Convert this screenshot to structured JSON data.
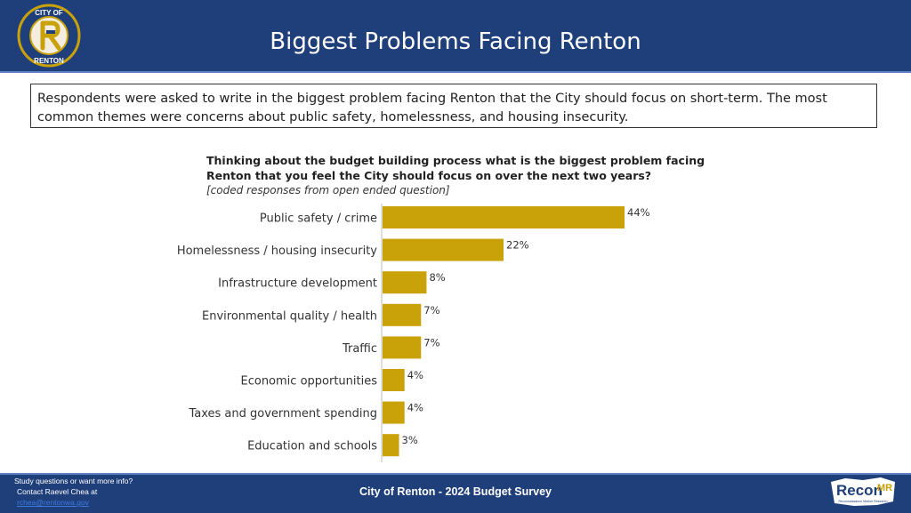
{
  "header": {
    "title": "Biggest Problems Facing Renton",
    "logo_text_top": "CITY OF",
    "logo_text_bottom": "RENTON"
  },
  "intro": "Respondents were asked to write in the biggest problem facing Renton that the City should focus on short-term. The most common themes were concerns about public safety, homelessness, and housing insecurity.",
  "question": {
    "title": "Thinking about the budget building process what is the biggest problem facing Renton that you feel the City should focus on over the next two years?",
    "subtitle": "[coded responses from open ended question]"
  },
  "chart_data": {
    "type": "bar",
    "orientation": "horizontal",
    "categories": [
      "Public safety  / crime",
      "Homelessness / housing insecurity",
      "Infrastructure development",
      "Environmental quality / health",
      "Traffic",
      "Economic opportunities",
      "Taxes and government spending",
      "Education and schools"
    ],
    "values": [
      44,
      22,
      8,
      7,
      7,
      4,
      4,
      3
    ],
    "value_labels": [
      "44%",
      "22%",
      "8%",
      "7%",
      "7%",
      "4%",
      "4%",
      "3%"
    ],
    "unit": "%",
    "bar_color": "#c9a20a",
    "grid": false
  },
  "footer": {
    "contact_line1": "Study questions or want more info?",
    "contact_line2": "Contact Raevel Chea at",
    "contact_email": "rchea@rentonwa.gov",
    "center": "City of Renton - 2024 Budget Survey",
    "brand": "Recon",
    "brand_suffix": "MR",
    "brand_tag": "Reconnaissance Market Research"
  },
  "colors": {
    "header_bg": "#1f3f7a",
    "accent": "#c9a20a"
  }
}
